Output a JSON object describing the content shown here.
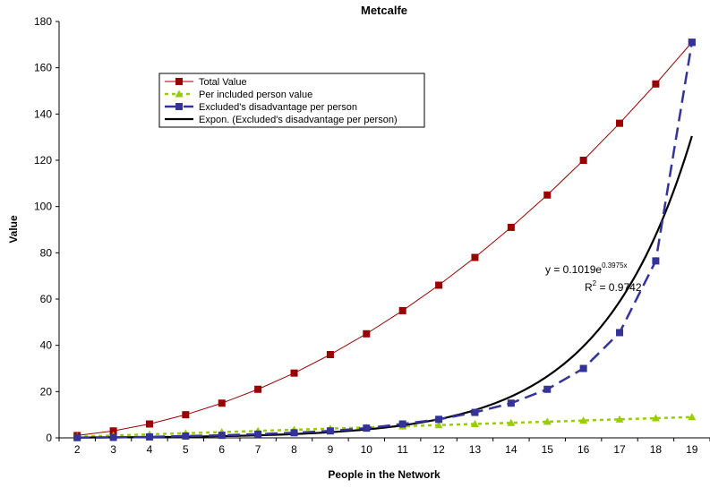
{
  "chart_data": {
    "type": "line",
    "title": "Metcalfe",
    "xlabel": "People in the Network",
    "ylabel": "Value",
    "x": [
      2,
      3,
      4,
      5,
      6,
      7,
      8,
      9,
      10,
      11,
      12,
      13,
      14,
      15,
      16,
      17,
      18,
      19
    ],
    "ylim": [
      0,
      180
    ],
    "yticks": [
      0,
      20,
      40,
      60,
      80,
      100,
      120,
      140,
      160,
      180
    ],
    "grid": false,
    "legend_position": "top-left",
    "series": [
      {
        "name": "Total Value",
        "color": "#990000",
        "style": "solid",
        "marker": "square",
        "values": [
          1,
          3,
          6,
          10,
          15,
          21,
          28,
          36,
          45,
          55,
          66,
          78,
          91,
          105,
          120,
          136,
          153,
          171
        ]
      },
      {
        "name": "Per included person value",
        "color": "#99CC00",
        "style": "dotted",
        "marker": "triangle",
        "values": [
          0.5,
          1,
          1.5,
          2,
          2.5,
          3,
          3.5,
          4,
          4.5,
          5,
          5.5,
          6,
          6.5,
          7,
          7.5,
          8,
          8.5,
          9
        ]
      },
      {
        "name": "Excluded's disadvantage per person",
        "color": "#333399",
        "style": "dashed",
        "marker": "square",
        "values": [
          0.1,
          0.2,
          0.4,
          0.8,
          1.1,
          1.6,
          2.2,
          3.0,
          4.2,
          6.0,
          8.0,
          11.0,
          15.0,
          21.0,
          30.0,
          45.5,
          76.5,
          171
        ]
      }
    ],
    "trendline": {
      "name": "Expon. (Excluded's disadvantage per person)",
      "color": "#000000",
      "a": 0.1019,
      "b": 0.3975,
      "equation_prefix": "y = 0.1019e",
      "equation_exponent": "0.3975x",
      "r2_prefix": "R",
      "r2_power": "2",
      "r2_suffix": " = 0.9742"
    }
  }
}
